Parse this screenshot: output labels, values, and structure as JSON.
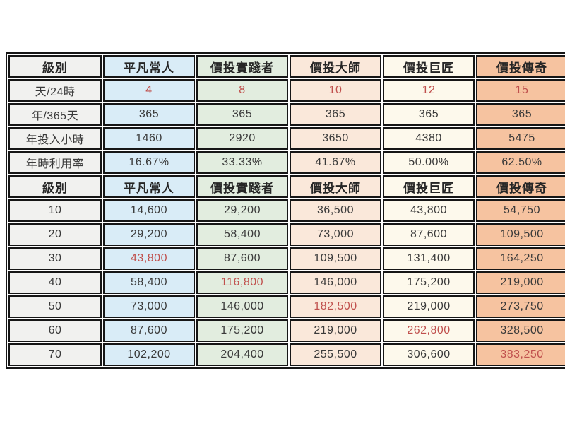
{
  "chart_data": {
    "type": "table",
    "title": "",
    "columns": [
      "級別",
      "平凡常人",
      "價投實踐者",
      "價投大師",
      "價投巨匠",
      "價投傳奇"
    ],
    "section1": {
      "rows": [
        {
          "label": "天/24時",
          "values": [
            "4",
            "8",
            "10",
            "12",
            "15"
          ],
          "red": [
            0,
            1,
            2,
            3,
            4
          ]
        },
        {
          "label": "年/365天",
          "values": [
            "365",
            "365",
            "365",
            "365",
            "365"
          ],
          "red": []
        },
        {
          "label": "年投入小時",
          "values": [
            "1460",
            "2920",
            "3650",
            "4380",
            "5475"
          ],
          "red": []
        },
        {
          "label": "年時利用率",
          "values": [
            "16.67%",
            "33.33%",
            "41.67%",
            "50.00%",
            "62.50%"
          ],
          "red": []
        }
      ]
    },
    "section2": {
      "rows": [
        {
          "label": "10",
          "values": [
            "14,600",
            "29,200",
            "36,500",
            "43,800",
            "54,750"
          ],
          "red": []
        },
        {
          "label": "20",
          "values": [
            "29,200",
            "58,400",
            "73,000",
            "87,600",
            "109,500"
          ],
          "red": []
        },
        {
          "label": "30",
          "values": [
            "43,800",
            "87,600",
            "109,500",
            "131,400",
            "164,250"
          ],
          "red": [
            0
          ]
        },
        {
          "label": "40",
          "values": [
            "58,400",
            "116,800",
            "146,000",
            "175,200",
            "219,000"
          ],
          "red": [
            1
          ]
        },
        {
          "label": "50",
          "values": [
            "73,000",
            "146,000",
            "182,500",
            "219,000",
            "273,750"
          ],
          "red": [
            2
          ]
        },
        {
          "label": "60",
          "values": [
            "87,600",
            "175,200",
            "219,000",
            "262,800",
            "328,500"
          ],
          "red": [
            3
          ]
        },
        {
          "label": "70",
          "values": [
            "102,200",
            "204,400",
            "255,500",
            "306,600",
            "383,250"
          ],
          "red": [
            4
          ]
        }
      ]
    },
    "styles": {
      "border_color": "#161616",
      "text_color": "#3a3a3a",
      "red_color": "#c0504d",
      "column_backgrounds": [
        "#f1f1ef",
        "#d9ecf7",
        "#e2eddf",
        "#fae8da",
        "#fdf9ec",
        "#f6c3a0"
      ]
    }
  }
}
